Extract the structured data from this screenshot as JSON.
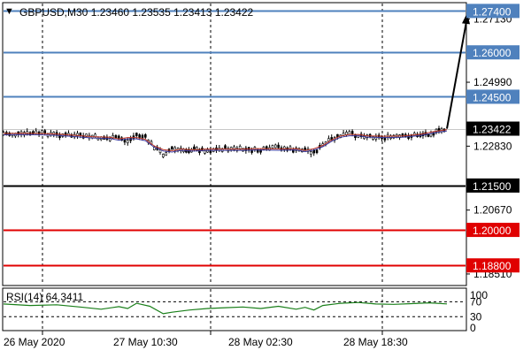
{
  "header": {
    "marker": "▼",
    "symbol_line": "GBPUSD,M30  1.23460 1.23535 1.23413 1.23422"
  },
  "price_axis": {
    "ticks": [
      "1.27130",
      "1.24990",
      "1.22830",
      "1.20670",
      "1.18510"
    ]
  },
  "levels": [
    {
      "label": "1.27400",
      "price": 1.274,
      "color": "#4f81bd",
      "text_color": "#ffffff"
    },
    {
      "label": "1.26000",
      "price": 1.26,
      "color": "#4f81bd",
      "text_color": "#ffffff"
    },
    {
      "label": "1.24500",
      "price": 1.245,
      "color": "#4f81bd",
      "text_color": "#ffffff"
    },
    {
      "label": "1.23422",
      "price": 1.23422,
      "color": "#000000",
      "text_color": "#ffffff",
      "current": true
    },
    {
      "label": "1.21500",
      "price": 1.215,
      "color": "#000000",
      "text_color": "#ffffff"
    },
    {
      "label": "1.20000",
      "price": 1.2,
      "color": "#e00000",
      "text_color": "#ffffff"
    },
    {
      "label": "1.18800",
      "price": 1.188,
      "color": "#e00000",
      "text_color": "#ffffff"
    }
  ],
  "time_axis": {
    "labels": [
      "26 May 2020",
      "27 May 10:30",
      "28 May 02:30",
      "28 May 18:30"
    ]
  },
  "rsi": {
    "label": "RSI(14) 64.3411",
    "ticks": [
      "100",
      "70",
      "30",
      "0"
    ],
    "color": "#1a7f1a"
  },
  "colors": {
    "grid": "#000000",
    "frame": "#000000",
    "candles": "#000000",
    "ma_fast": "#c0392b",
    "ma_slow": "#3a3aa0"
  },
  "chart_data": {
    "type": "candlestick",
    "symbol": "GBPUSD",
    "timeframe": "M30",
    "ohlc_last": {
      "open": 1.2346,
      "high": 1.23535,
      "low": 1.23413,
      "close": 1.23422
    },
    "ylim": [
      1.1815,
      1.2765
    ],
    "close_path": [
      [
        0,
        1.2325
      ],
      [
        0.04,
        1.2323
      ],
      [
        0.08,
        1.2328
      ],
      [
        0.12,
        1.2322
      ],
      [
        0.16,
        1.2318
      ],
      [
        0.2,
        1.2315
      ],
      [
        0.24,
        1.2308
      ],
      [
        0.26,
        1.2312
      ],
      [
        0.28,
        1.2298
      ],
      [
        0.3,
        1.2322
      ],
      [
        0.32,
        1.2312
      ],
      [
        0.34,
        1.228
      ],
      [
        0.36,
        1.2255
      ],
      [
        0.38,
        1.2275
      ],
      [
        0.4,
        1.2268
      ],
      [
        0.43,
        1.2272
      ],
      [
        0.46,
        1.2268
      ],
      [
        0.5,
        1.2275
      ],
      [
        0.54,
        1.2272
      ],
      [
        0.58,
        1.2268
      ],
      [
        0.62,
        1.228
      ],
      [
        0.66,
        1.2268
      ],
      [
        0.68,
        1.2272
      ],
      [
        0.7,
        1.2262
      ],
      [
        0.72,
        1.2285
      ],
      [
        0.74,
        1.2305
      ],
      [
        0.76,
        1.2318
      ],
      [
        0.78,
        1.2325
      ],
      [
        0.8,
        1.232
      ],
      [
        0.82,
        1.2318
      ],
      [
        0.86,
        1.2312
      ],
      [
        0.9,
        1.2315
      ],
      [
        0.94,
        1.2322
      ],
      [
        0.97,
        1.2328
      ],
      [
        1,
        1.23422
      ]
    ],
    "projection_target": 1.274,
    "rsi_series": [
      [
        0,
        64
      ],
      [
        0.06,
        60
      ],
      [
        0.12,
        62
      ],
      [
        0.18,
        55
      ],
      [
        0.22,
        50
      ],
      [
        0.26,
        57
      ],
      [
        0.28,
        52
      ],
      [
        0.3,
        66
      ],
      [
        0.33,
        58
      ],
      [
        0.36,
        38
      ],
      [
        0.38,
        42
      ],
      [
        0.42,
        48
      ],
      [
        0.46,
        52
      ],
      [
        0.5,
        54
      ],
      [
        0.54,
        56
      ],
      [
        0.58,
        52
      ],
      [
        0.62,
        58
      ],
      [
        0.66,
        50
      ],
      [
        0.68,
        55
      ],
      [
        0.7,
        48
      ],
      [
        0.72,
        60
      ],
      [
        0.76,
        66
      ],
      [
        0.8,
        68
      ],
      [
        0.84,
        64
      ],
      [
        0.88,
        63
      ],
      [
        0.92,
        65
      ],
      [
        0.96,
        67
      ],
      [
        1,
        64.34
      ]
    ]
  }
}
